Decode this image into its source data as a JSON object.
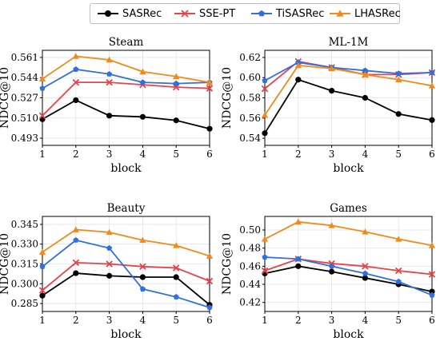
{
  "legend": {
    "entries": [
      {
        "name": "SASRec",
        "color": "#000000",
        "marker": "circle"
      },
      {
        "name": "SSE-PT",
        "color": "#e8424a",
        "marker": "x"
      },
      {
        "name": "TiSASRec",
        "color": "#2f6fe0",
        "marker": "pentagon"
      },
      {
        "name": "LHASRec",
        "color": "#f28a1a",
        "marker": "triangle"
      }
    ],
    "placement": "top-center"
  },
  "chart_data": [
    {
      "type": "line",
      "title": "Steam",
      "xlabel": "block",
      "ylabel": "NDCG@10",
      "x": [
        1,
        2,
        3,
        4,
        5,
        6
      ],
      "xlim": [
        1,
        6
      ],
      "ylim": [
        0.487,
        0.567
      ],
      "yticks": [
        "0.493",
        "0.510",
        "0.527",
        "0.544",
        "0.561"
      ],
      "grid": true,
      "series": [
        {
          "name": "SASRec",
          "color": "#000000",
          "marker": "circle",
          "values": [
            0.509,
            0.525,
            0.512,
            0.511,
            0.508,
            0.501
          ]
        },
        {
          "name": "SSE-PT",
          "color": "#e8424a",
          "marker": "x",
          "values": [
            0.512,
            0.54,
            0.54,
            0.538,
            0.536,
            0.535
          ]
        },
        {
          "name": "TiSASRec",
          "color": "#2f6fe0",
          "marker": "pentagon",
          "values": [
            0.535,
            0.551,
            0.547,
            0.54,
            0.539,
            0.54
          ]
        },
        {
          "name": "LHASRec",
          "color": "#f28a1a",
          "marker": "triangle",
          "values": [
            0.543,
            0.562,
            0.559,
            0.549,
            0.545,
            0.54
          ]
        }
      ]
    },
    {
      "type": "line",
      "title": "ML-1M",
      "xlabel": "block",
      "ylabel": "NDCG@10",
      "x": [
        1,
        2,
        3,
        4,
        5,
        6
      ],
      "xlim": [
        1,
        6
      ],
      "ylim": [
        0.533,
        0.627
      ],
      "yticks": [
        "0.54",
        "0.56",
        "0.58",
        "0.60",
        "0.62"
      ],
      "grid": true,
      "series": [
        {
          "name": "SASRec",
          "color": "#000000",
          "marker": "circle",
          "values": [
            0.545,
            0.598,
            0.587,
            0.58,
            0.564,
            0.558
          ]
        },
        {
          "name": "SSE-PT",
          "color": "#e8424a",
          "marker": "x",
          "values": [
            0.589,
            0.616,
            0.61,
            0.603,
            0.603,
            0.605
          ]
        },
        {
          "name": "TiSASRec",
          "color": "#2f6fe0",
          "marker": "pentagon",
          "values": [
            0.597,
            0.615,
            0.61,
            0.607,
            0.604,
            0.605
          ]
        },
        {
          "name": "LHASRec",
          "color": "#f28a1a",
          "marker": "triangle",
          "values": [
            0.563,
            0.612,
            0.609,
            0.603,
            0.598,
            0.592
          ]
        }
      ]
    },
    {
      "type": "line",
      "title": "Beauty",
      "xlabel": "block",
      "ylabel": "NDCG@10",
      "x": [
        1,
        2,
        3,
        4,
        5,
        6
      ],
      "xlim": [
        1,
        6
      ],
      "ylim": [
        0.279,
        0.351
      ],
      "yticks": [
        "0.285",
        "0.300",
        "0.315",
        "0.330",
        "0.345"
      ],
      "grid": true,
      "series": [
        {
          "name": "SASRec",
          "color": "#000000",
          "marker": "circle",
          "values": [
            0.291,
            0.308,
            0.306,
            0.305,
            0.305,
            0.284
          ]
        },
        {
          "name": "SSE-PT",
          "color": "#e8424a",
          "marker": "x",
          "values": [
            0.295,
            0.316,
            0.315,
            0.313,
            0.312,
            0.302
          ]
        },
        {
          "name": "TiSASRec",
          "color": "#2f6fe0",
          "marker": "pentagon",
          "values": [
            0.313,
            0.333,
            0.327,
            0.296,
            0.29,
            0.282
          ]
        },
        {
          "name": "LHASRec",
          "color": "#f28a1a",
          "marker": "triangle",
          "values": [
            0.324,
            0.341,
            0.339,
            0.333,
            0.329,
            0.321
          ]
        }
      ]
    },
    {
      "type": "line",
      "title": "Games",
      "xlabel": "block",
      "ylabel": "NDCG@10",
      "x": [
        1,
        2,
        3,
        4,
        5,
        6
      ],
      "xlim": [
        1,
        6
      ],
      "ylim": [
        0.41,
        0.515
      ],
      "yticks": [
        "0.42",
        "0.44",
        "0.46",
        "0.48",
        "0.50"
      ],
      "grid": true,
      "series": [
        {
          "name": "SASRec",
          "color": "#000000",
          "marker": "circle",
          "values": [
            0.452,
            0.46,
            0.454,
            0.447,
            0.44,
            0.432
          ]
        },
        {
          "name": "SSE-PT",
          "color": "#e8424a",
          "marker": "x",
          "values": [
            0.455,
            0.468,
            0.463,
            0.46,
            0.455,
            0.451
          ]
        },
        {
          "name": "TiSASRec",
          "color": "#2f6fe0",
          "marker": "pentagon",
          "values": [
            0.47,
            0.468,
            0.46,
            0.452,
            0.443,
            0.428
          ]
        },
        {
          "name": "LHASRec",
          "color": "#f28a1a",
          "marker": "triangle",
          "values": [
            0.49,
            0.509,
            0.505,
            0.498,
            0.49,
            0.483
          ]
        }
      ]
    }
  ]
}
